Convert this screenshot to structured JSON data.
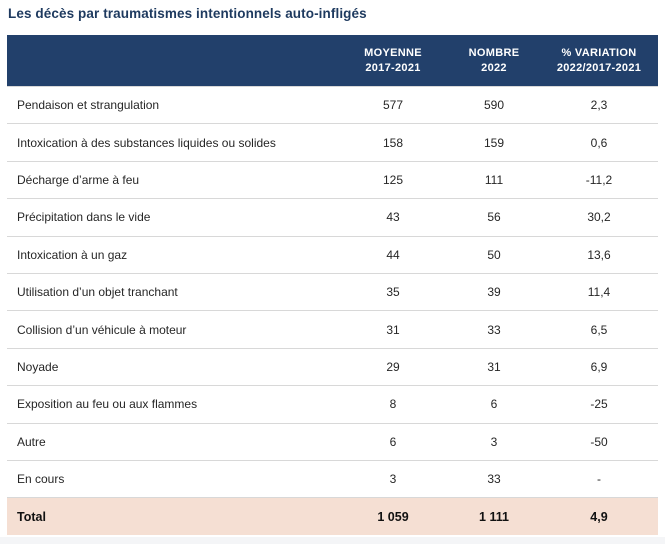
{
  "title": "Les décès par traumatismes intentionnels auto-infligés",
  "colors": {
    "header_bg": "#22406B",
    "total_bg": "#F5DFD3",
    "title_text": "#1E3A5F",
    "row_divider": "#D8D8D8"
  },
  "table": {
    "header": [
      {
        "line1": "MOYENNE",
        "line2": "2017-2021"
      },
      {
        "line1": "NOMBRE",
        "line2": "2022"
      },
      {
        "line1": "% VARIATION",
        "line2": "2022/2017-2021"
      }
    ],
    "rows": [
      {
        "label": "Pendaison et strangulation",
        "moyenne": "577",
        "nombre": "590",
        "variation": "2,3"
      },
      {
        "label": "Intoxication à des substances liquides ou solides",
        "moyenne": "158",
        "nombre": "159",
        "variation": "0,6"
      },
      {
        "label": "Décharge d’arme à feu",
        "moyenne": "125",
        "nombre": "111",
        "variation": "-11,2"
      },
      {
        "label": "Précipitation dans le vide",
        "moyenne": "43",
        "nombre": "56",
        "variation": "30,2"
      },
      {
        "label": "Intoxication à un gaz",
        "moyenne": "44",
        "nombre": "50",
        "variation": "13,6"
      },
      {
        "label": "Utilisation d’un objet tranchant",
        "moyenne": "35",
        "nombre": "39",
        "variation": "11,4"
      },
      {
        "label": "Collision d’un véhicule à moteur",
        "moyenne": "31",
        "nombre": "33",
        "variation": "6,5"
      },
      {
        "label": "Noyade",
        "moyenne": "29",
        "nombre": "31",
        "variation": "6,9"
      },
      {
        "label": "Exposition au feu ou aux flammes",
        "moyenne": "8",
        "nombre": "6",
        "variation": "-25"
      },
      {
        "label": "Autre",
        "moyenne": "6",
        "nombre": "3",
        "variation": "-50"
      },
      {
        "label": "En cours",
        "moyenne": "3",
        "nombre": "33",
        "variation": "-"
      }
    ],
    "total": {
      "label": "Total",
      "moyenne": "1 059",
      "nombre": "1 111",
      "variation": "4,9"
    }
  },
  "chart_data": {
    "type": "table",
    "title": "Les décès par traumatismes intentionnels auto-infligés",
    "columns": [
      "Cause",
      "Moyenne 2017-2021",
      "Nombre 2022",
      "% variation 2022/2017-2021"
    ],
    "rows": [
      [
        "Pendaison et strangulation",
        577,
        590,
        2.3
      ],
      [
        "Intoxication à des substances liquides ou solides",
        158,
        159,
        0.6
      ],
      [
        "Décharge d’arme à feu",
        125,
        111,
        -11.2
      ],
      [
        "Précipitation dans le vide",
        43,
        56,
        30.2
      ],
      [
        "Intoxication à un gaz",
        44,
        50,
        13.6
      ],
      [
        "Utilisation d’un objet tranchant",
        35,
        39,
        11.4
      ],
      [
        "Collision d’un véhicule à moteur",
        31,
        33,
        6.5
      ],
      [
        "Noyade",
        29,
        31,
        6.9
      ],
      [
        "Exposition au feu ou aux flammes",
        8,
        6,
        -25
      ],
      [
        "Autre",
        6,
        3,
        -50
      ],
      [
        "En cours",
        3,
        33,
        null
      ]
    ],
    "total": [
      "Total",
      1059,
      1111,
      4.9
    ]
  }
}
